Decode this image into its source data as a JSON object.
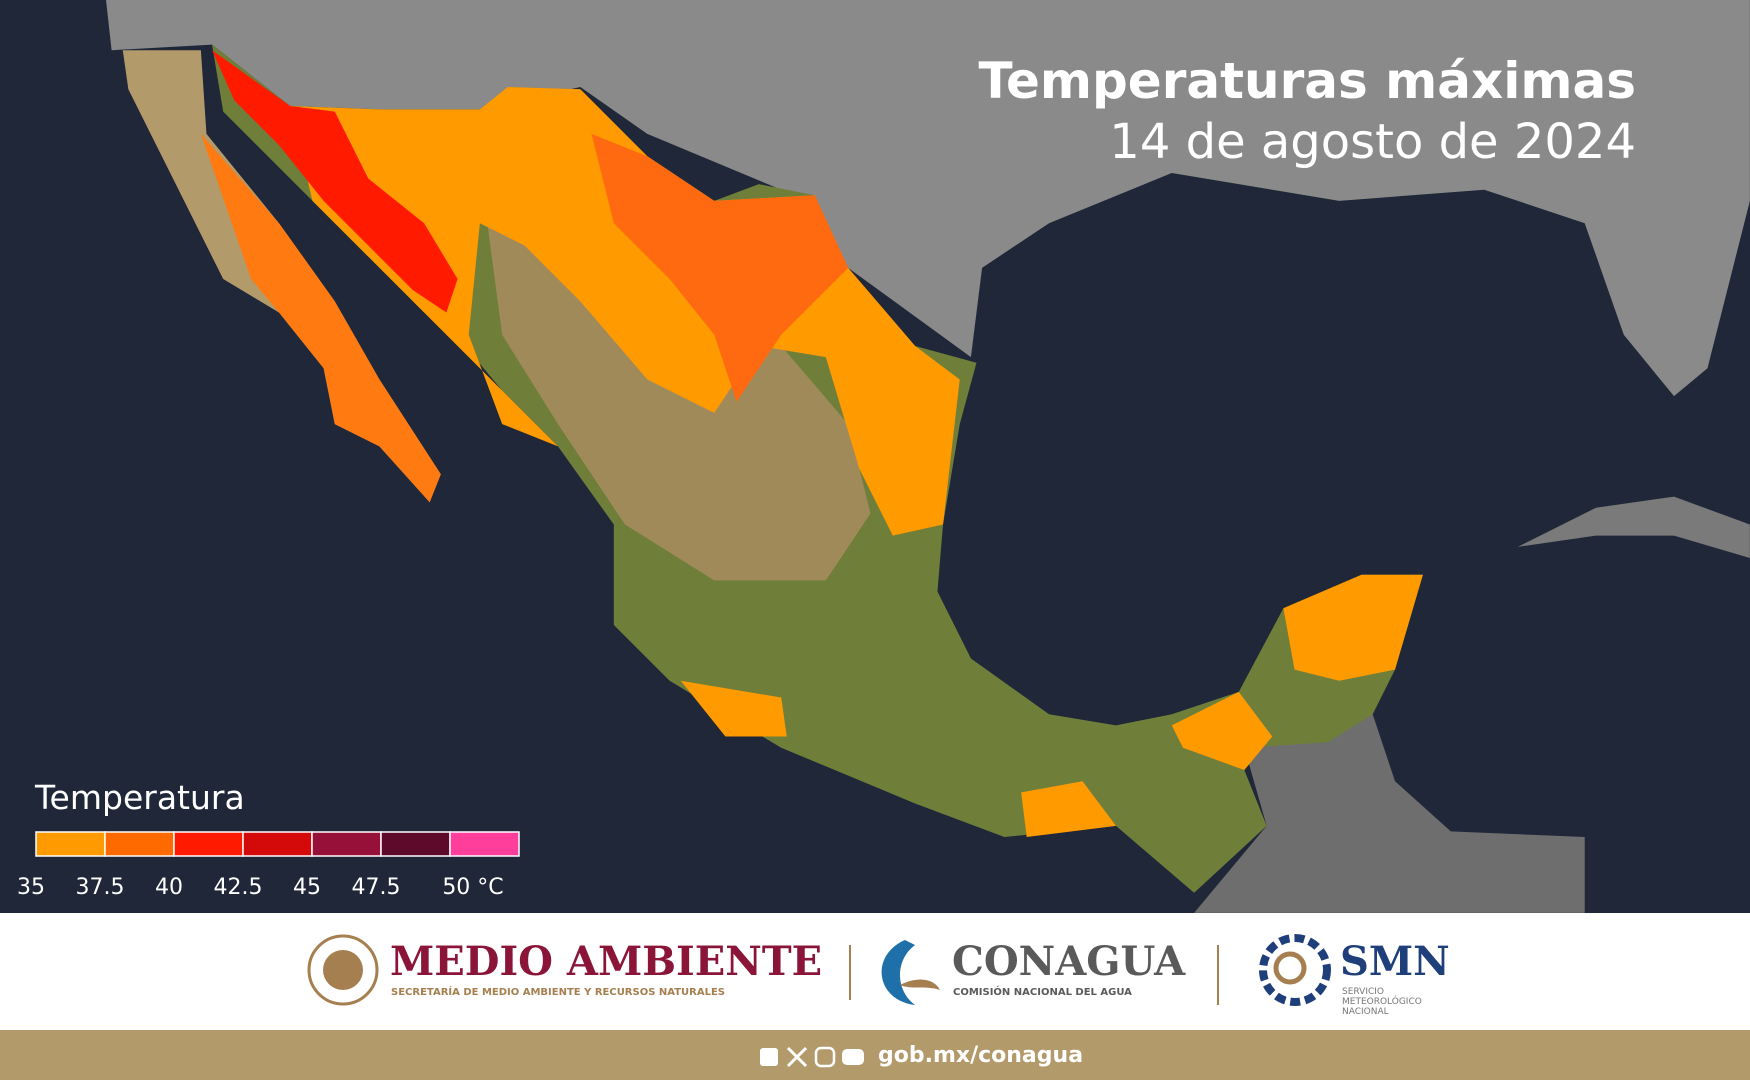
{
  "header": {
    "title": "Temperaturas máximas",
    "subtitle": "14 de agosto de 2024"
  },
  "legend": {
    "title": "Temperatura",
    "colors": [
      "#ff9a00",
      "#ff6a00",
      "#ff1a00",
      "#d40a0a",
      "#96103a",
      "#5e0a2a",
      "#ff3d9a"
    ],
    "ticks": [
      35,
      37.5,
      40,
      42.5,
      45,
      47.5,
      {
        "value": 50,
        "label": "50 °C"
      }
    ]
  },
  "logos": {
    "semarnat": {
      "name": "MEDIO AMBIENTE",
      "subtitle": "SECRETARÍA DE MEDIO AMBIENTE Y RECURSOS NATURALES"
    },
    "conagua": {
      "name": "CONAGUA",
      "subtitle": "COMISIÓN NACIONAL DEL AGUA"
    },
    "smn": {
      "name": "SMN",
      "subtitle": [
        "SERVICIO",
        "METEOROLÓGICO",
        "NACIONAL"
      ]
    }
  },
  "footer": {
    "url": "gob.mx/conagua"
  }
}
